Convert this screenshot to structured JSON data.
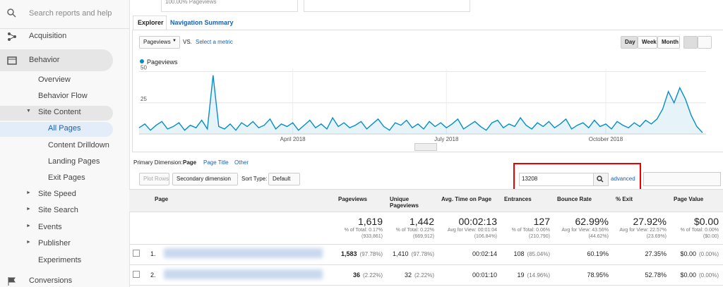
{
  "sidebar": {
    "search": "Search reports and help",
    "items": [
      "Acquisition",
      "Behavior",
      "Overview",
      "Behavior Flow",
      "Site Content",
      "All Pages",
      "Content Drilldown",
      "Landing Pages",
      "Exit Pages",
      "Site Speed",
      "Site Search",
      "Events",
      "Publisher",
      "Experiments",
      "Conversions"
    ]
  },
  "top_card": "100.00% Pageviews",
  "tabs": [
    "Explorer",
    "Navigation Summary"
  ],
  "chart_controls": {
    "metric": "Pageviews",
    "vs": "VS.",
    "select": "Select a metric",
    "periods": [
      "Day",
      "Week",
      "Month"
    ]
  },
  "chart_data": {
    "type": "line",
    "series": [
      {
        "name": "Pageviews",
        "color": "#058dc7",
        "values": [
          5,
          8,
          3,
          7,
          10,
          4,
          6,
          9,
          3,
          7,
          5,
          11,
          4,
          47,
          6,
          4,
          8,
          3,
          9,
          6,
          10,
          5,
          7,
          12,
          4,
          8,
          6,
          9,
          3,
          7,
          11,
          5,
          8,
          4,
          13,
          6,
          9,
          5,
          7,
          10,
          4,
          8,
          12,
          6,
          3,
          9,
          7,
          11,
          5,
          8,
          4,
          10,
          6,
          9,
          5,
          8,
          12,
          4,
          7,
          10,
          6,
          3,
          9,
          11,
          5,
          8,
          6,
          13,
          7,
          4,
          9,
          6,
          10,
          5,
          8,
          12,
          4,
          7,
          9,
          5,
          11,
          6,
          8,
          4,
          10,
          7,
          5,
          9,
          6,
          11,
          8,
          12,
          20,
          34,
          25,
          37,
          28,
          15,
          6,
          1
        ]
      }
    ],
    "ylim": [
      0,
      52
    ],
    "yticks": [
      25,
      50
    ],
    "xlim": [
      0,
      99
    ],
    "xticks": [
      {
        "value": 27,
        "label": "April 2018"
      },
      {
        "value": 54,
        "label": "July 2018"
      },
      {
        "value": 82,
        "label": "October 2018"
      }
    ],
    "grid": true
  },
  "dimension": {
    "label": "Primary Dimension:",
    "options": [
      "Page",
      "Page Title",
      "Other"
    ]
  },
  "table_controls": {
    "plot_rows": "Plot Rows",
    "secondary": "Secondary dimension",
    "sort_label": "Sort Type:",
    "sort": "Default",
    "search": "13208",
    "advanced": "advanced"
  },
  "table": {
    "headers": [
      "Page",
      "Pageviews",
      "Unique Pageviews",
      "Avg. Time on Page",
      "Entrances",
      "Bounce Rate",
      "% Exit",
      "Page Value"
    ],
    "totals": [
      [
        "1,619",
        "% of Total: 0.17%",
        "(933,861)"
      ],
      [
        "1,442",
        "% of Total: 0.22%",
        "(669,912)"
      ],
      [
        "00:02:13",
        "Avg for View: 00:01:04",
        "(106.84%)"
      ],
      [
        "127",
        "% of Total: 0.06%",
        "(210,790)"
      ],
      [
        "62.99%",
        "Avg for View: 43.56%",
        "(44.62%)"
      ],
      [
        "27.92%",
        "Avg for View: 22.57%",
        "(23.69%)"
      ],
      [
        "$0.00",
        "% of Total: 0.00%",
        "($0.00)"
      ]
    ],
    "rows": [
      {
        "index": "1.",
        "cells": [
          [
            "1,583",
            "(97.78%)"
          ],
          [
            "1,410",
            "(97.78%)"
          ],
          [
            "00:02:14"
          ],
          [
            "108",
            "(85.04%)"
          ],
          [
            "60.19%"
          ],
          [
            "27.35%"
          ],
          [
            "$0.00",
            "(0.00%)"
          ]
        ]
      },
      {
        "index": "2.",
        "cells": [
          [
            "36",
            "(2.22%)"
          ],
          [
            "32",
            "(2.22%)"
          ],
          [
            "00:01:10"
          ],
          [
            "19",
            "(14.96%)"
          ],
          [
            "78.95%"
          ],
          [
            "52.78%"
          ],
          [
            "$0.00",
            "(0.00%)"
          ]
        ]
      }
    ]
  }
}
